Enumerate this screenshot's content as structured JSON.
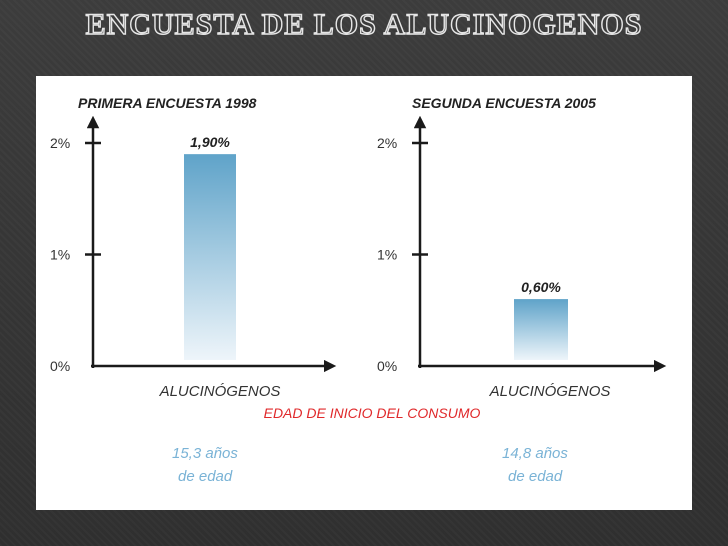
{
  "slide": {
    "title": "ENCUESTA DE LOS ALUCINOGENOS"
  },
  "colors": {
    "bar_top": "#5fa3c9",
    "bar_bottom": "#eef5fa",
    "axis": "#1a1a1a",
    "age_text": "#7ab3d6",
    "center_label": "#e0292b"
  },
  "chart_data": [
    {
      "type": "bar",
      "title": "PRIMERA ENCUESTA 1998",
      "categories": [
        "ALUCINÓGENOS"
      ],
      "values": [
        1.9
      ],
      "value_labels": [
        "1,90%"
      ],
      "ylim": [
        0,
        2
      ],
      "yticks": [
        "0%",
        "1%",
        "2%"
      ],
      "age": [
        "15,3 años",
        "de edad"
      ]
    },
    {
      "type": "bar",
      "title": "SEGUNDA ENCUESTA 2005",
      "categories": [
        "ALUCINÓGENOS"
      ],
      "values": [
        0.6
      ],
      "value_labels": [
        "0,60%"
      ],
      "ylim": [
        0,
        2
      ],
      "yticks": [
        "0%",
        "1%",
        "2%"
      ],
      "age": [
        "14,8 años",
        "de edad"
      ]
    }
  ],
  "center_label": "EDAD DE INICIO DEL CONSUMO"
}
